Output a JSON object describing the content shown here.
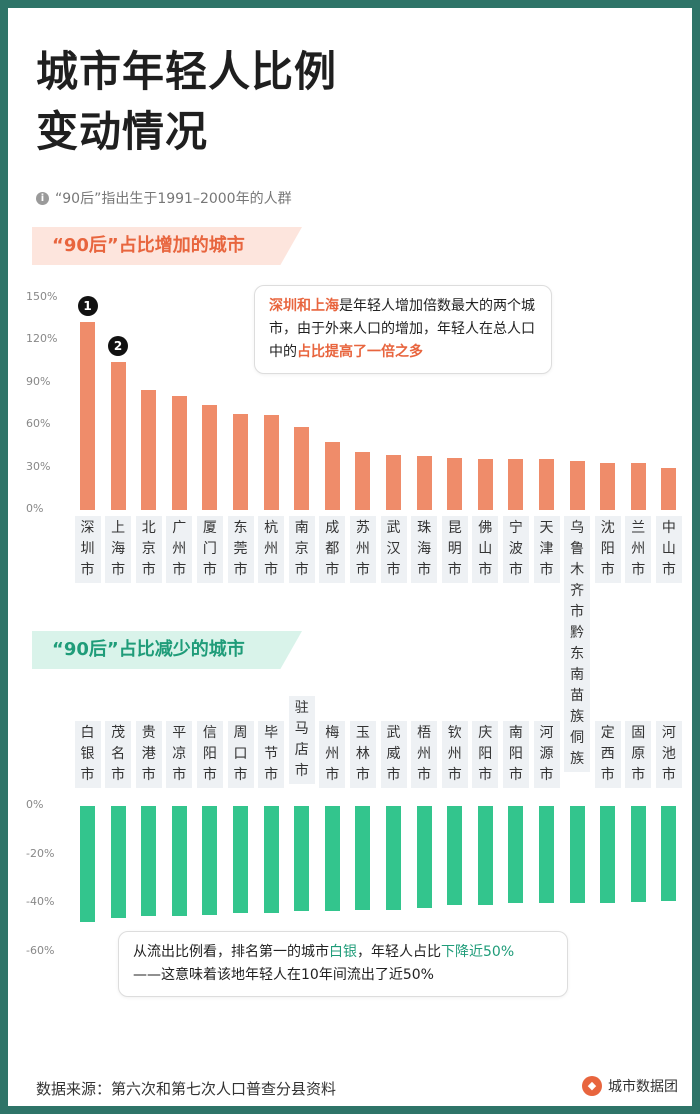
{
  "title": {
    "line1": "城市年轻人比例",
    "line2": "变动情况"
  },
  "note": {
    "icon": "info-icon",
    "text": "“90后”指出生于1991–2000年的人群"
  },
  "colors": {
    "increase_bar": "#ef8c6a",
    "decrease_bar": "#33c58d",
    "increase_accent": "#e8653e",
    "decrease_accent": "#1f9c79",
    "frame": "#2e7468"
  },
  "chart_data": [
    {
      "type": "bar",
      "title": "“90后”占比增加的城市",
      "categories": [
        "深圳市",
        "上海市",
        "北京市",
        "广州市",
        "厦门市",
        "东莞市",
        "杭州市",
        "南京市",
        "成都市",
        "苏州市",
        "武汉市",
        "珠海市",
        "昆明市",
        "佛山市",
        "宁波市",
        "天津市",
        "乌鲁木齐市",
        "沈阳市",
        "兰州市",
        "中山市"
      ],
      "values": [
        133,
        105,
        85,
        81,
        74,
        68,
        67,
        59,
        48,
        41,
        39,
        38,
        37,
        36,
        36,
        36,
        35,
        33,
        33,
        30
      ],
      "unit": "%",
      "ylim": [
        0,
        150
      ],
      "yticks": [
        "150%",
        "120%",
        "90%",
        "60%",
        "30%",
        "0%"
      ],
      "rank_badges": [
        "1",
        "2"
      ],
      "annotation": {
        "pre": "深圳和上海",
        "mid": "是年轻人增加倍数最大的两个城市，由于外来人口的增加，年轻人在总人口中的",
        "post": "占比提高了一倍之多"
      }
    },
    {
      "type": "bar",
      "title": "“90后”占比减少的城市",
      "categories": [
        "白银市",
        "茂名市",
        "贵港市",
        "平凉市",
        "信阳市",
        "周口市",
        "毕节市",
        "驻马店市",
        "梅州市",
        "玉林市",
        "武威市",
        "梧州市",
        "钦州市",
        "庆阳市",
        "南阳市",
        "河源市",
        "黔东南苗族侗族",
        "定西市",
        "固原市",
        "河池市"
      ],
      "values": [
        -48,
        -46,
        -45.5,
        -45.5,
        -45,
        -44,
        -44,
        -43.5,
        -43.5,
        -43,
        -43,
        -42,
        -41,
        -41,
        -40,
        -40,
        -40,
        -40,
        -39.5,
        -39
      ],
      "unit": "%",
      "ylim": [
        -60,
        0
      ],
      "yticks": [
        "0%",
        "-20%",
        "-40%",
        "-60%"
      ],
      "annotation": {
        "pre": "从流出比例看，排名第一的城市",
        "city": "白银",
        "mid": "，年轻人占比",
        "drop": "下降近50%",
        "line2": "——这意味着该地年轻人在10年间流出了近50%"
      }
    }
  ],
  "footer": {
    "source": "数据来源：第六次和第七次人口普查分县资料",
    "brand": "城市数据团",
    "brand_icon": "city-data-group-logo"
  }
}
